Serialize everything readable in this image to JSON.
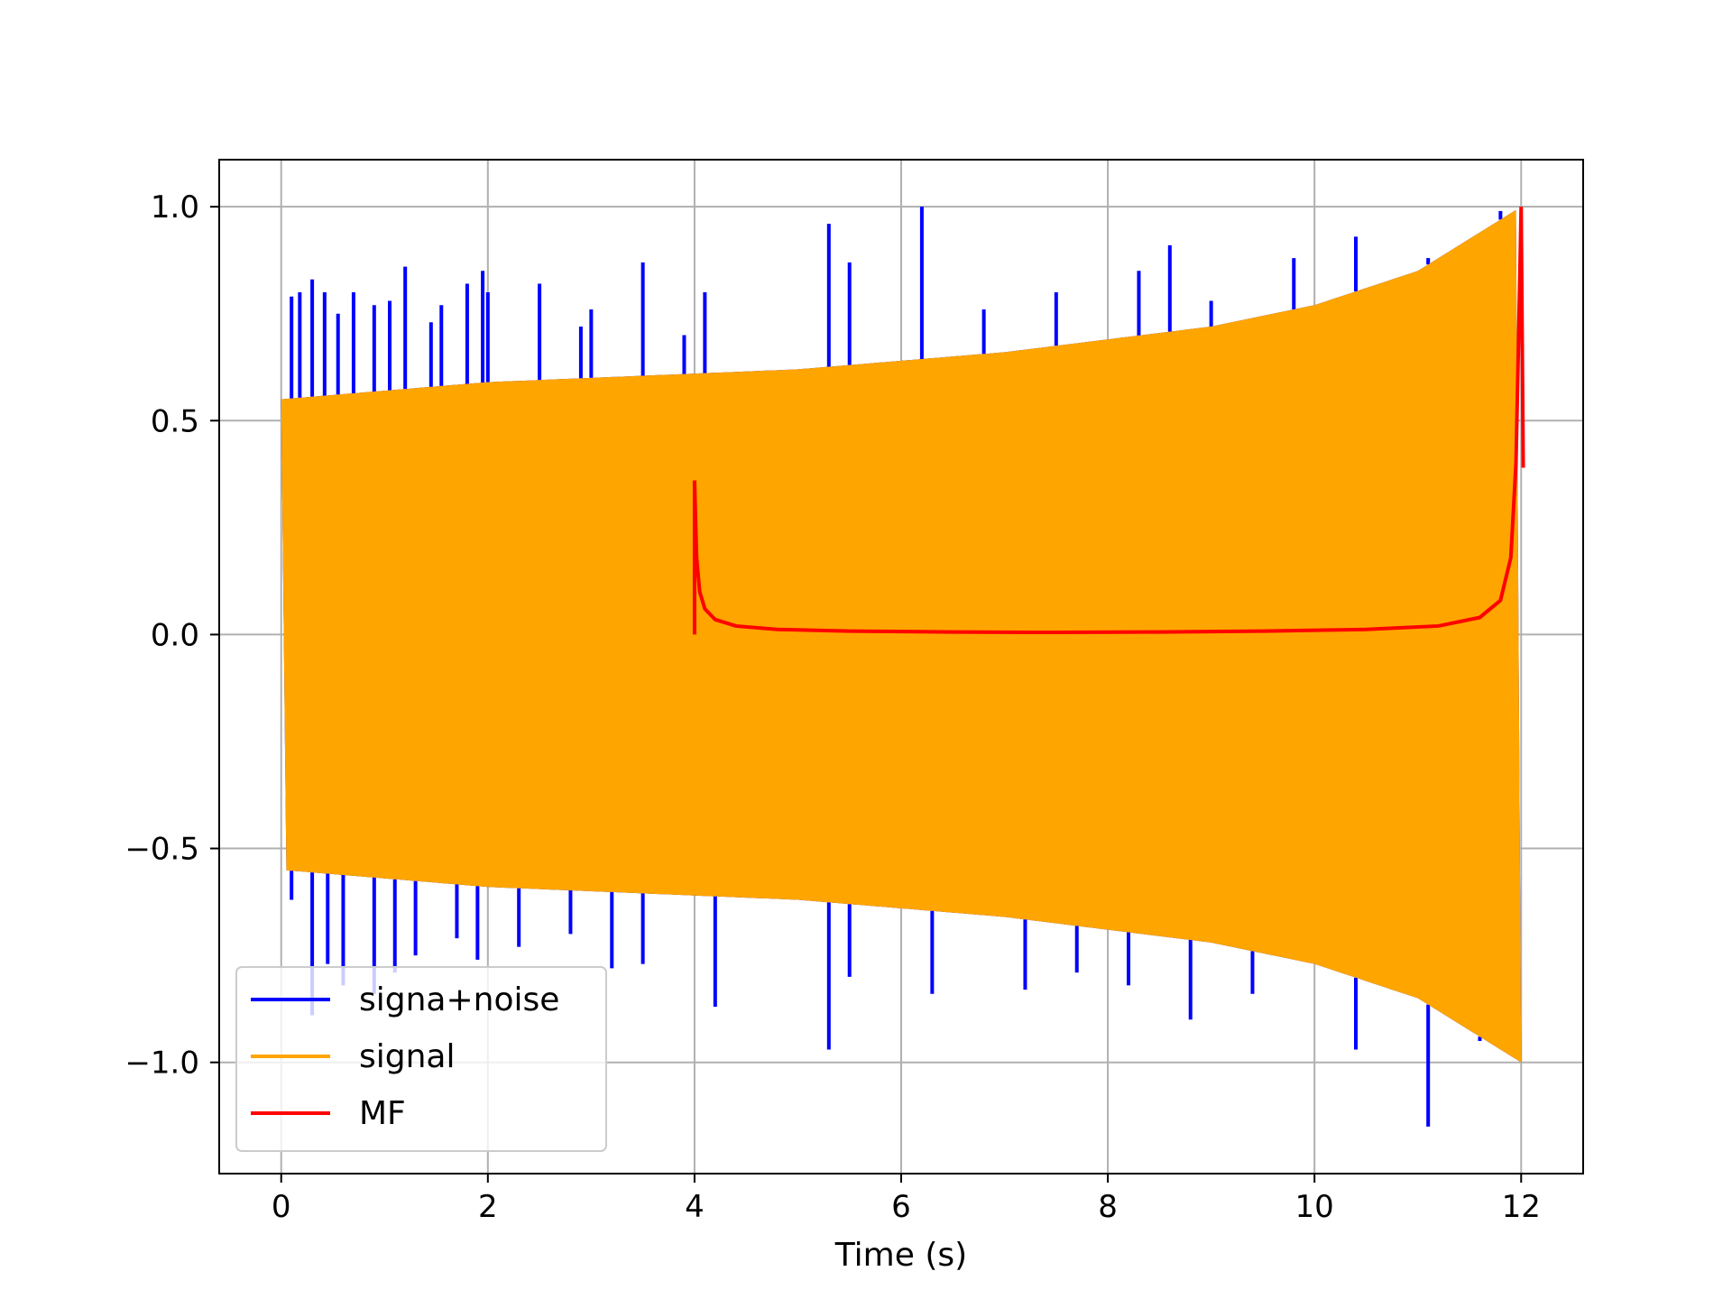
{
  "chart_data": {
    "type": "line",
    "title": "",
    "xlabel": "Time (s)",
    "ylabel": "",
    "xlim": [
      -0.6,
      12.6
    ],
    "ylim": [
      -1.26,
      1.11
    ],
    "xticks": [
      0,
      2,
      4,
      6,
      8,
      10,
      12
    ],
    "xtick_labels": [
      "0",
      "2",
      "4",
      "6",
      "8",
      "10",
      "12"
    ],
    "yticks": [
      -1.0,
      -0.5,
      0.0,
      0.5,
      1.0
    ],
    "ytick_labels": [
      "−1.0",
      "−0.5",
      "0.0",
      "0.5",
      "1.0"
    ],
    "grid": true,
    "legend_position": "lower-left",
    "series": [
      {
        "name": "signa+noise",
        "color": "#0000ff",
        "description_points": {
          "t": [
            0,
            1,
            2,
            3,
            4,
            5,
            6,
            7,
            8,
            9,
            10,
            11,
            12
          ],
          "upper_envelope": [
            0.55,
            0.57,
            0.59,
            0.6,
            0.61,
            0.62,
            0.64,
            0.66,
            0.69,
            0.72,
            0.77,
            0.85,
            1.0
          ],
          "lower_envelope": [
            -0.55,
            -0.57,
            -0.59,
            -0.6,
            -0.61,
            -0.62,
            -0.64,
            -0.66,
            -0.69,
            -0.72,
            -0.77,
            -0.85,
            -1.0
          ],
          "spike_peaks_t": [
            0.1,
            0.18,
            0.3,
            0.42,
            0.55,
            0.7,
            0.9,
            1.05,
            1.2,
            1.45,
            1.55,
            1.8,
            1.95,
            2.0,
            2.5,
            2.9,
            3.0,
            3.5,
            3.9,
            4.1,
            5.3,
            5.5,
            6.2,
            6.8,
            7.5,
            8.3,
            8.6,
            9.0,
            9.8,
            10.4,
            11.1,
            11.8
          ],
          "spike_peaks_y": [
            0.79,
            0.8,
            0.83,
            0.8,
            0.75,
            0.8,
            0.77,
            0.78,
            0.86,
            0.73,
            0.77,
            0.82,
            0.85,
            0.8,
            0.82,
            0.72,
            0.76,
            0.87,
            0.7,
            0.8,
            0.96,
            0.87,
            1.0,
            0.76,
            0.8,
            0.85,
            0.91,
            0.78,
            0.88,
            0.93,
            0.88,
            0.99
          ],
          "spike_troughs_t": [
            0.1,
            0.3,
            0.45,
            0.6,
            0.9,
            1.1,
            1.3,
            1.7,
            1.9,
            2.3,
            2.8,
            3.2,
            3.5,
            4.2,
            5.3,
            5.5,
            6.3,
            7.2,
            7.7,
            8.2,
            8.8,
            9.4,
            10.4,
            11.1,
            11.6
          ],
          "spike_troughs_y": [
            -0.62,
            -0.89,
            -0.77,
            -0.82,
            -0.84,
            -0.79,
            -0.75,
            -0.71,
            -0.76,
            -0.73,
            -0.7,
            -0.78,
            -0.77,
            -0.87,
            -0.97,
            -0.8,
            -0.84,
            -0.83,
            -0.79,
            -0.82,
            -0.9,
            -0.84,
            -0.97,
            -1.15,
            -0.95
          ]
        }
      },
      {
        "name": "signal",
        "color": "#ffa500",
        "description_points": {
          "t": [
            0,
            1,
            2,
            3,
            4,
            5,
            6,
            7,
            8,
            9,
            10,
            11,
            12
          ],
          "upper_envelope": [
            0.55,
            0.57,
            0.59,
            0.6,
            0.61,
            0.62,
            0.64,
            0.66,
            0.69,
            0.72,
            0.77,
            0.85,
            1.0
          ],
          "lower_envelope": [
            -0.55,
            -0.57,
            -0.59,
            -0.6,
            -0.61,
            -0.62,
            -0.64,
            -0.66,
            -0.69,
            -0.72,
            -0.77,
            -0.85,
            -1.0
          ]
        }
      },
      {
        "name": "MF",
        "color": "#ff0000",
        "x": [
          4.0,
          4.02,
          4.05,
          4.1,
          4.2,
          4.4,
          4.8,
          5.5,
          6.5,
          7.5,
          8.5,
          9.5,
          10.5,
          11.2,
          11.6,
          11.8,
          11.9,
          11.95,
          11.98,
          12.0,
          12.02
        ],
        "y": [
          0.36,
          0.18,
          0.1,
          0.06,
          0.035,
          0.02,
          0.012,
          0.008,
          0.006,
          0.005,
          0.006,
          0.008,
          0.012,
          0.02,
          0.04,
          0.08,
          0.18,
          0.4,
          0.75,
          1.0,
          0.39
        ]
      }
    ]
  }
}
